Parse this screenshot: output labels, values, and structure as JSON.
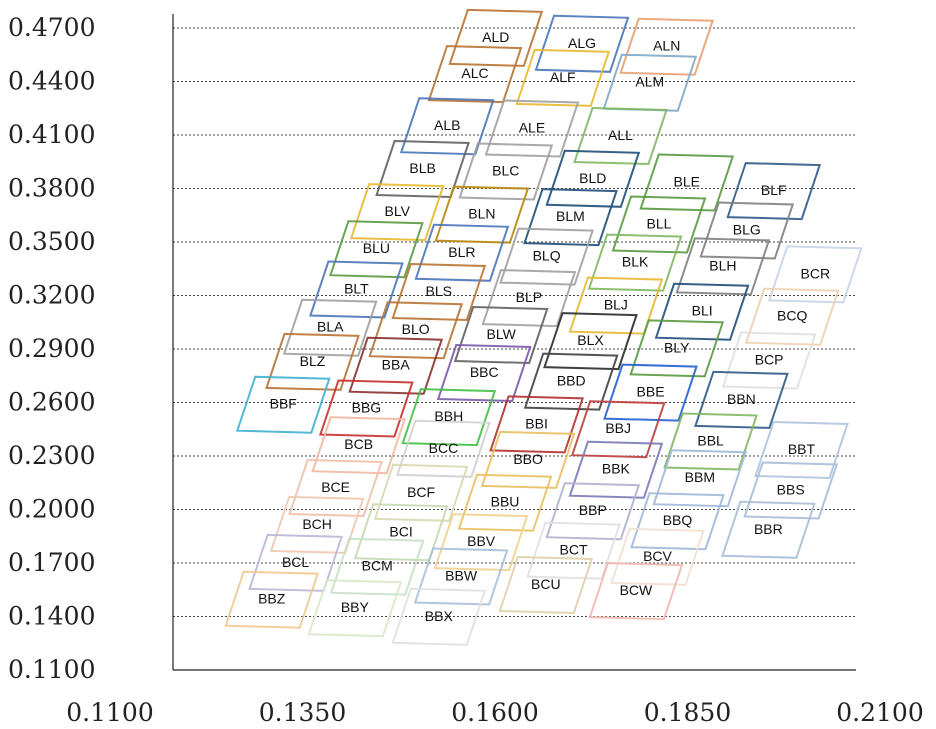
{
  "chart_data": {
    "type": "scatter",
    "title": "",
    "xlabel": "",
    "ylabel": "",
    "xlim": [
      0.11,
      0.21
    ],
    "ylim": [
      0.11,
      0.48
    ],
    "x_ticks": [
      "0.1100",
      "0.1350",
      "0.1600",
      "0.1850",
      "0.2100"
    ],
    "y_ticks": [
      "0.4700",
      "0.4400",
      "0.4100",
      "0.3800",
      "0.3500",
      "0.3200",
      "0.2900",
      "0.2600",
      "0.2300",
      "0.2000",
      "0.1700",
      "0.1400",
      "0.1100"
    ],
    "grid": {
      "horizontal": true,
      "style": "dashed"
    },
    "cells": [
      {
        "label": "ALD",
        "x": 0.1601,
        "y": 0.465,
        "color": "#b87333"
      },
      {
        "label": "ALG",
        "x": 0.1713,
        "y": 0.4617,
        "color": "#4a76b8"
      },
      {
        "label": "ALN",
        "x": 0.1823,
        "y": 0.4601,
        "color": "#e8a070"
      },
      {
        "label": "ALC",
        "x": 0.1574,
        "y": 0.4447,
        "color": "#b87333"
      },
      {
        "label": "ALF",
        "x": 0.1688,
        "y": 0.4426,
        "color": "#e8b830"
      },
      {
        "label": "ALM",
        "x": 0.1801,
        "y": 0.4399,
        "color": "#7fa8c8"
      },
      {
        "label": "ALB",
        "x": 0.1538,
        "y": 0.4155,
        "color": "#4a76b8"
      },
      {
        "label": "ALE",
        "x": 0.1648,
        "y": 0.4142,
        "color": "#a0a0a0"
      },
      {
        "label": "ALL",
        "x": 0.1763,
        "y": 0.41,
        "color": "#7fb860"
      },
      {
        "label": "BLB",
        "x": 0.1506,
        "y": 0.3915,
        "color": "#606060"
      },
      {
        "label": "BLC",
        "x": 0.1614,
        "y": 0.3901,
        "color": "#a0a0a0"
      },
      {
        "label": "BLD",
        "x": 0.1727,
        "y": 0.386,
        "color": "#1f4e79"
      },
      {
        "label": "BLE",
        "x": 0.1849,
        "y": 0.3839,
        "color": "#5a9a40"
      },
      {
        "label": "BLF",
        "x": 0.1962,
        "y": 0.3791,
        "color": "#2e5a88"
      },
      {
        "label": "BLV",
        "x": 0.1473,
        "y": 0.3673,
        "color": "#e8b830"
      },
      {
        "label": "BLN",
        "x": 0.1583,
        "y": 0.3659,
        "color": "#b8860b"
      },
      {
        "label": "BLM",
        "x": 0.1698,
        "y": 0.3645,
        "color": "#1f4e79"
      },
      {
        "label": "BLL",
        "x": 0.1813,
        "y": 0.3604,
        "color": "#5a9a40"
      },
      {
        "label": "BLG",
        "x": 0.1927,
        "y": 0.357,
        "color": "#808080"
      },
      {
        "label": "BLU",
        "x": 0.1446,
        "y": 0.3465,
        "color": "#5a9a40"
      },
      {
        "label": "BLR",
        "x": 0.1557,
        "y": 0.3445,
        "color": "#4a76b8"
      },
      {
        "label": "BLQ",
        "x": 0.1667,
        "y": 0.3424,
        "color": "#a0a0a0"
      },
      {
        "label": "BLK",
        "x": 0.1782,
        "y": 0.339,
        "color": "#7fb860"
      },
      {
        "label": "BLH",
        "x": 0.1896,
        "y": 0.3369,
        "color": "#808080"
      },
      {
        "label": "BCR",
        "x": 0.2016,
        "y": 0.3324,
        "color": "#c8d4e8"
      },
      {
        "label": "BLT",
        "x": 0.142,
        "y": 0.3239,
        "color": "#4a76b8"
      },
      {
        "label": "BLS",
        "x": 0.1527,
        "y": 0.3225,
        "color": "#b87333"
      },
      {
        "label": "BLP",
        "x": 0.1644,
        "y": 0.3191,
        "color": "#a0a0a0"
      },
      {
        "label": "BLJ",
        "x": 0.1757,
        "y": 0.3149,
        "color": "#e8b830"
      },
      {
        "label": "BLI",
        "x": 0.1869,
        "y": 0.3115,
        "color": "#1f4e79"
      },
      {
        "label": "BCQ",
        "x": 0.1986,
        "y": 0.3087,
        "color": "#f0d0b0"
      },
      {
        "label": "BLA",
        "x": 0.1386,
        "y": 0.3025,
        "color": "#a0a0a0"
      },
      {
        "label": "BLO",
        "x": 0.1497,
        "y": 0.3011,
        "color": "#b87333"
      },
      {
        "label": "BLW",
        "x": 0.1608,
        "y": 0.2984,
        "color": "#606060"
      },
      {
        "label": "BLX",
        "x": 0.1724,
        "y": 0.295,
        "color": "#2a2a2a"
      },
      {
        "label": "BLY",
        "x": 0.1836,
        "y": 0.2909,
        "color": "#5a9a40"
      },
      {
        "label": "BCP",
        "x": 0.1956,
        "y": 0.2841,
        "color": "#e0e0e0"
      },
      {
        "label": "BLZ",
        "x": 0.1363,
        "y": 0.2833,
        "color": "#b87333"
      },
      {
        "label": "BBA",
        "x": 0.1471,
        "y": 0.2812,
        "color": "#8a3030"
      },
      {
        "label": "BBC",
        "x": 0.1586,
        "y": 0.2771,
        "color": "#7a5aa8"
      },
      {
        "label": "BBD",
        "x": 0.1699,
        "y": 0.2723,
        "color": "#404040"
      },
      {
        "label": "BBE",
        "x": 0.1802,
        "y": 0.2661,
        "color": "#2060d0"
      },
      {
        "label": "BBN",
        "x": 0.192,
        "y": 0.262,
        "color": "#2e5a88"
      },
      {
        "label": "BBF",
        "x": 0.1325,
        "y": 0.2593,
        "color": "#40b0d0"
      },
      {
        "label": "BBG",
        "x": 0.1433,
        "y": 0.2572,
        "color": "#c83030"
      },
      {
        "label": "BBH",
        "x": 0.154,
        "y": 0.2524,
        "color": "#40c040"
      },
      {
        "label": "BBI",
        "x": 0.1654,
        "y": 0.2483,
        "color": "#b03030"
      },
      {
        "label": "BBJ",
        "x": 0.176,
        "y": 0.2456,
        "color": "#c04040"
      },
      {
        "label": "BBL",
        "x": 0.188,
        "y": 0.2387,
        "color": "#7fb860"
      },
      {
        "label": "BBT",
        "x": 0.1998,
        "y": 0.2339,
        "color": "#b0c4de"
      },
      {
        "label": "BCB",
        "x": 0.1423,
        "y": 0.2366,
        "color": "#f0b8a0"
      },
      {
        "label": "BCC",
        "x": 0.1533,
        "y": 0.2346,
        "color": "#d0d0d0"
      },
      {
        "label": "BBO",
        "x": 0.1643,
        "y": 0.2284,
        "color": "#e8c060"
      },
      {
        "label": "BBK",
        "x": 0.1757,
        "y": 0.2229,
        "color": "#7a7ab8"
      },
      {
        "label": "BBM",
        "x": 0.1866,
        "y": 0.2181,
        "color": "#a0b8d8"
      },
      {
        "label": "BBS",
        "x": 0.1984,
        "y": 0.2112,
        "color": "#a8bcd8"
      },
      {
        "label": "BCE",
        "x": 0.1393,
        "y": 0.2126,
        "color": "#f0c0a8"
      },
      {
        "label": "BCF",
        "x": 0.1504,
        "y": 0.2099,
        "color": "#d8d8b0"
      },
      {
        "label": "BBU",
        "x": 0.1613,
        "y": 0.2044,
        "color": "#e8c060"
      },
      {
        "label": "BBP",
        "x": 0.1727,
        "y": 0.1996,
        "color": "#b0b0d0"
      },
      {
        "label": "BBQ",
        "x": 0.1837,
        "y": 0.194,
        "color": "#a0b8d8"
      },
      {
        "label": "BBR",
        "x": 0.1955,
        "y": 0.1892,
        "color": "#a8bcd8"
      },
      {
        "label": "BCH",
        "x": 0.1369,
        "y": 0.1919,
        "color": "#f0c8b0"
      },
      {
        "label": "BCI",
        "x": 0.1478,
        "y": 0.1878,
        "color": "#c8d8b0"
      },
      {
        "label": "BBV",
        "x": 0.1582,
        "y": 0.1823,
        "color": "#f0d090"
      },
      {
        "label": "BCT",
        "x": 0.1702,
        "y": 0.1775,
        "color": "#e0e0e0"
      },
      {
        "label": "BCV",
        "x": 0.1811,
        "y": 0.174,
        "color": "#f0e0d0"
      },
      {
        "label": "BCL",
        "x": 0.1341,
        "y": 0.1706,
        "color": "#b8b8d8"
      },
      {
        "label": "BCM",
        "x": 0.1447,
        "y": 0.1685,
        "color": "#c8e0c8"
      },
      {
        "label": "BBW",
        "x": 0.1556,
        "y": 0.163,
        "color": "#a8c0d8"
      },
      {
        "label": "BCU",
        "x": 0.1666,
        "y": 0.1582,
        "color": "#e0d0a8"
      },
      {
        "label": "BCW",
        "x": 0.1783,
        "y": 0.1548,
        "color": "#f0b8b0"
      },
      {
        "label": "BBZ",
        "x": 0.131,
        "y": 0.15,
        "color": "#f0c890"
      },
      {
        "label": "BBY",
        "x": 0.1418,
        "y": 0.1452,
        "color": "#d8e8c8"
      },
      {
        "label": "BBX",
        "x": 0.1527,
        "y": 0.1404,
        "color": "#e0e0e0"
      }
    ]
  }
}
